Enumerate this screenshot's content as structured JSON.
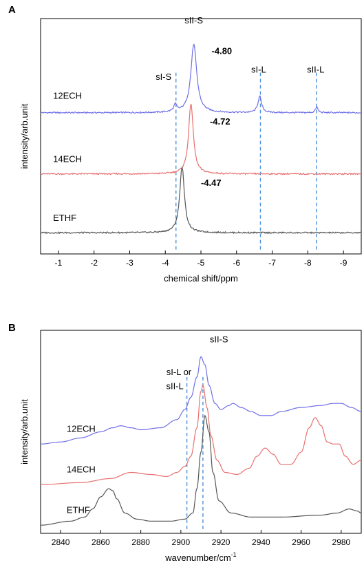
{
  "chart_data": [
    {
      "panel_label": "A",
      "type": "line",
      "xlabel": "chemical shift/ppm",
      "ylabel": "intensity/arb.unit",
      "xlim": [
        -0.5,
        -9.5
      ],
      "x_reversed": true,
      "xticks": [
        -1,
        -2,
        -3,
        -4,
        -5,
        -6,
        -7,
        -8,
        -9
      ],
      "xtick_labels": [
        "-1",
        "-2",
        "-3",
        "-4",
        "-5",
        "-6",
        "-7",
        "-8",
        "-9"
      ],
      "ylim": [
        0,
        1
      ],
      "colors": {
        "12ECH": "#6f6fe8",
        "14ECH": "#e86f6f",
        "ETHF": "#555555",
        "guide": "#4a90d9"
      },
      "series": [
        {
          "name": "12ECH",
          "baseline": 0.6,
          "peaks": [
            {
              "x": -4.28,
              "height": 0.03,
              "width": 0.05
            },
            {
              "x": -4.8,
              "height": 0.29,
              "width": 0.1
            },
            {
              "x": -6.65,
              "height": 0.07,
              "width": 0.06
            },
            {
              "x": -8.25,
              "height": 0.025,
              "width": 0.04
            }
          ]
        },
        {
          "name": "14ECH",
          "baseline": 0.34,
          "peaks": [
            {
              "x": -4.72,
              "height": 0.3,
              "width": 0.08
            }
          ]
        },
        {
          "name": "ETHF",
          "baseline": 0.09,
          "peaks": [
            {
              "x": -4.47,
              "height": 0.28,
              "width": 0.08
            }
          ]
        }
      ],
      "guide_lines": [
        -4.3,
        -6.67,
        -8.24
      ],
      "annotations": [
        {
          "text": "sII-S",
          "x": -4.8,
          "y": 0.98
        },
        {
          "text": "-4.80",
          "x": -5.3,
          "y": 0.85
        },
        {
          "text": "sI-S",
          "x": -3.95,
          "y": 0.74
        },
        {
          "text": "sI-L",
          "x": -6.62,
          "y": 0.77
        },
        {
          "text": "sII-L",
          "x": -8.22,
          "y": 0.77
        },
        {
          "text": "-4.72",
          "x": -5.25,
          "y": 0.55
        },
        {
          "text": "-4.47",
          "x": -5.0,
          "y": 0.29
        }
      ],
      "series_labels": [
        {
          "text": "12ECH",
          "x": -0.85,
          "y": 0.66
        },
        {
          "text": "14ECH",
          "x": -0.85,
          "y": 0.39
        },
        {
          "text": "ETHF",
          "x": -0.85,
          "y": 0.14
        }
      ]
    },
    {
      "panel_label": "B",
      "type": "line",
      "xlabel": "wavenumber/cm",
      "xlabel_superscript": "-1",
      "ylabel": "intensity/arb.unit",
      "xlim": [
        2830,
        2990
      ],
      "xticks": [
        2840,
        2860,
        2880,
        2900,
        2920,
        2940,
        2960,
        2980
      ],
      "xtick_labels": [
        "2840",
        "2860",
        "2880",
        "2900",
        "2920",
        "2940",
        "2960",
        "2980"
      ],
      "ylim": [
        0,
        1
      ],
      "colors": {
        "12ECH": "#6f6fe8",
        "14ECH": "#e86f6f",
        "ETHF": "#555555",
        "guide": "#4a90d9"
      },
      "series": [
        {
          "name": "12ECH",
          "x": [
            2830,
            2840,
            2850,
            2860,
            2866,
            2870,
            2875,
            2880,
            2890,
            2898,
            2902,
            2905,
            2908,
            2910,
            2912,
            2914,
            2917,
            2920,
            2924,
            2926,
            2930,
            2935,
            2940,
            2945,
            2950,
            2960,
            2970,
            2976,
            2980,
            2985,
            2990
          ],
          "y": [
            0.44,
            0.45,
            0.47,
            0.5,
            0.52,
            0.53,
            0.52,
            0.51,
            0.52,
            0.56,
            0.61,
            0.67,
            0.77,
            0.87,
            0.83,
            0.73,
            0.64,
            0.61,
            0.63,
            0.64,
            0.62,
            0.6,
            0.58,
            0.58,
            0.6,
            0.62,
            0.63,
            0.64,
            0.64,
            0.62,
            0.6
          ]
        },
        {
          "name": "14ECH",
          "x": [
            2830,
            2850,
            2865,
            2875,
            2885,
            2893,
            2898,
            2902,
            2905,
            2908,
            2910,
            2911,
            2913,
            2915,
            2918,
            2922,
            2928,
            2934,
            2938,
            2942,
            2946,
            2950,
            2955,
            2960,
            2964,
            2967,
            2970,
            2973,
            2976,
            2979,
            2982,
            2986,
            2990
          ],
          "y": [
            0.24,
            0.25,
            0.27,
            0.3,
            0.29,
            0.28,
            0.3,
            0.33,
            0.38,
            0.52,
            0.7,
            0.73,
            0.62,
            0.48,
            0.36,
            0.3,
            0.29,
            0.32,
            0.38,
            0.42,
            0.39,
            0.34,
            0.34,
            0.4,
            0.52,
            0.57,
            0.53,
            0.45,
            0.44,
            0.44,
            0.38,
            0.34,
            0.36
          ]
        },
        {
          "name": "ETHF",
          "x": [
            2830,
            2845,
            2852,
            2856,
            2860,
            2864,
            2866,
            2868,
            2872,
            2878,
            2885,
            2895,
            2902,
            2906,
            2908,
            2910,
            2912,
            2914,
            2916,
            2919,
            2925,
            2935,
            2950,
            2970,
            2978,
            2984,
            2988,
            2990
          ],
          "y": [
            0.04,
            0.06,
            0.08,
            0.12,
            0.18,
            0.22,
            0.21,
            0.17,
            0.1,
            0.07,
            0.06,
            0.06,
            0.07,
            0.1,
            0.22,
            0.4,
            0.58,
            0.5,
            0.3,
            0.16,
            0.1,
            0.08,
            0.08,
            0.09,
            0.1,
            0.12,
            0.11,
            0.1
          ]
        }
      ],
      "guide_lines": [
        2903,
        2911
      ],
      "annotations": [
        {
          "text": "sII-S",
          "x": 2919,
          "y": 0.94
        },
        {
          "text": "sI-L or",
          "x": 2899,
          "y": 0.78
        },
        {
          "text": "sII-L",
          "x": 2897,
          "y": 0.71
        }
      ],
      "series_labels": [
        {
          "text": "12ECH",
          "x": 2843,
          "y": 0.5
        },
        {
          "text": "14ECH",
          "x": 2843,
          "y": 0.3
        },
        {
          "text": "ETHF",
          "x": 2843,
          "y": 0.1
        }
      ]
    }
  ]
}
